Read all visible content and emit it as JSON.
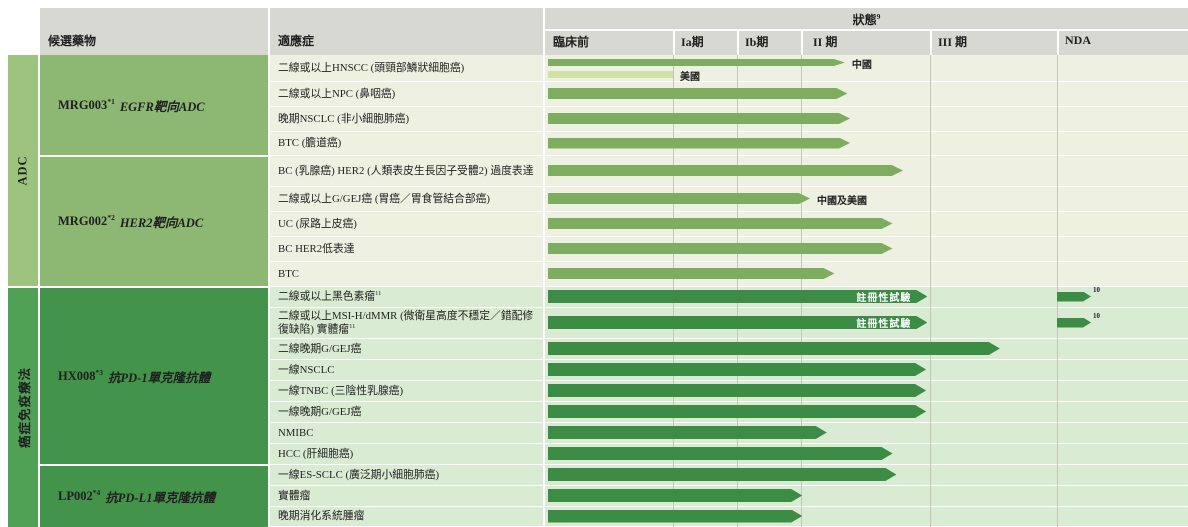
{
  "header": {
    "candidate_drug_label": "候選藥物",
    "indication_label": "適應症",
    "status_label": "狀態",
    "status_sup": "9",
    "phases": [
      "臨床前",
      "Ia期",
      "Ib期",
      "II 期",
      "III 期",
      "NDA"
    ]
  },
  "sections": [
    {
      "label": "ADC"
    },
    {
      "label": "癌症免疫療法"
    }
  ],
  "drugs": [
    {
      "name": "MRG003",
      "sup": "*1",
      "desc": "EGFR靶向ADC"
    },
    {
      "name": "MRG002",
      "sup": "*2",
      "desc": "HER2靶向ADC"
    },
    {
      "name": "HX008",
      "sup": "*3",
      "desc": "抗PD-1單克隆抗體"
    },
    {
      "name": "LP002",
      "sup": "*4",
      "desc": "抗PD-L1單克隆抗體"
    }
  ],
  "colors": {
    "header_bg": "#d8d8d2",
    "adc_strip": "#9cc47f",
    "adc_drug_cell": "#8db873",
    "io_strip": "#50a055",
    "io_drug_cell": "#43934a",
    "adc_row_bg": "#eef0e1",
    "io_row_bg": "#d9ebd2",
    "bar_mid": "#7ead60",
    "bar_light": "#cfe3a8",
    "bar_dark": "#3c8c46",
    "grid_line": "#c3c7b8",
    "text": "#1f1f1f",
    "registrational_text": "#ffffff"
  },
  "chart_data": {
    "type": "bar",
    "subtype": "pipeline-gantt",
    "phase_scale": [
      "臨床前",
      "Ia期",
      "Ib期",
      "II期",
      "III期",
      "NDA"
    ],
    "legend_note": "bar end values are in phase units: 0=臨床前 start, 1=Ia期 start, 2=Ib期 start, 3=II期 start, 4=III期 start, 5=NDA start",
    "rows": [
      {
        "drug": "MRG003",
        "section": "adc",
        "indication": "二線或以上HNSCC (頭頸部鱗狀細胞癌)",
        "bars": [
          {
            "end": 3.34,
            "tone": "mid",
            "label": "中國",
            "slot": 0
          },
          {
            "end": 1.0,
            "tone": "light",
            "label": "美國",
            "flat": true,
            "slot": 1
          }
        ]
      },
      {
        "drug": "MRG003",
        "section": "adc",
        "indication": "二線或以上NPC (鼻咽癌)",
        "bars": [
          {
            "end": 3.36,
            "tone": "mid"
          }
        ]
      },
      {
        "drug": "MRG003",
        "section": "adc",
        "indication": "晚期NSCLC (非小細胞肺癌)",
        "bars": [
          {
            "end": 3.38,
            "tone": "mid"
          }
        ]
      },
      {
        "drug": "MRG003",
        "section": "adc",
        "indication": "BTC (膽道癌)",
        "bars": [
          {
            "end": 3.38,
            "tone": "mid"
          }
        ]
      },
      {
        "drug": "MRG002",
        "section": "adc",
        "indication": "BC (乳腺癌) HER2 (人類表皮生長因子受體2) 過度表達",
        "bars": [
          {
            "end": 3.79,
            "tone": "mid"
          }
        ]
      },
      {
        "drug": "MRG002",
        "section": "adc",
        "indication": "二線或以上G/GEJ癌 (胃癌／胃食管結合部癌)",
        "bars": [
          {
            "end": 3.07,
            "tone": "mid",
            "label": "中國及美國"
          }
        ]
      },
      {
        "drug": "MRG002",
        "section": "adc",
        "indication": "UC (尿路上皮癌)",
        "bars": [
          {
            "end": 3.71,
            "tone": "mid"
          }
        ]
      },
      {
        "drug": "MRG002",
        "section": "adc",
        "indication": "BC HER2低表達",
        "bars": [
          {
            "end": 3.71,
            "tone": "mid"
          }
        ]
      },
      {
        "drug": "MRG002",
        "section": "adc",
        "indication": "BTC",
        "bars": [
          {
            "end": 3.26,
            "tone": "mid"
          }
        ]
      },
      {
        "drug": "HX008",
        "section": "io",
        "indication": "二線或以上黑色素瘤",
        "sup": "11",
        "bars": [
          {
            "end": 3.98,
            "tone": "dark",
            "inside": "註冊性試驗"
          },
          {
            "start": 5.0,
            "end": 5.26,
            "tone": "dark",
            "sup": "10"
          }
        ]
      },
      {
        "drug": "HX008",
        "section": "io",
        "indication": "二線或以上MSI-H/dMMR (微衛星高度不穩定／錯配修復缺陷) 實體瘤",
        "sup": "11",
        "bars": [
          {
            "end": 3.98,
            "tone": "dark",
            "inside": "註冊性試驗"
          },
          {
            "start": 5.0,
            "end": 5.26,
            "tone": "dark",
            "sup": "10"
          }
        ]
      },
      {
        "drug": "HX008",
        "section": "io",
        "indication": "二線晚期G/GEJ癌",
        "bars": [
          {
            "end": 4.55,
            "tone": "dark"
          }
        ]
      },
      {
        "drug": "HX008",
        "section": "io",
        "indication": "一線NSCLC",
        "bars": [
          {
            "end": 3.97,
            "tone": "dark"
          }
        ]
      },
      {
        "drug": "HX008",
        "section": "io",
        "indication": "一線TNBC (三陰性乳腺癌)",
        "bars": [
          {
            "end": 3.97,
            "tone": "dark"
          }
        ]
      },
      {
        "drug": "HX008",
        "section": "io",
        "indication": "一線晚期G/GEJ癌",
        "bars": [
          {
            "end": 3.97,
            "tone": "dark"
          }
        ]
      },
      {
        "drug": "HX008",
        "section": "io",
        "indication": "NMIBC",
        "bars": [
          {
            "end": 3.2,
            "tone": "dark"
          }
        ]
      },
      {
        "drug": "HX008",
        "section": "io",
        "indication": "HCC (肝細胞癌)",
        "bars": [
          {
            "end": 3.71,
            "tone": "dark"
          }
        ]
      },
      {
        "drug": "LP002",
        "section": "io",
        "indication": "一線ES-SCLC (廣泛期小細胞肺癌)",
        "bars": [
          {
            "end": 3.74,
            "tone": "dark"
          }
        ]
      },
      {
        "drug": "LP002",
        "section": "io",
        "indication": "實體瘤",
        "bars": [
          {
            "end": 3.01,
            "tone": "dark"
          }
        ]
      },
      {
        "drug": "LP002",
        "section": "io",
        "indication": "晚期消化系統腫瘤",
        "bars": [
          {
            "end": 3.01,
            "tone": "dark"
          }
        ]
      }
    ]
  }
}
